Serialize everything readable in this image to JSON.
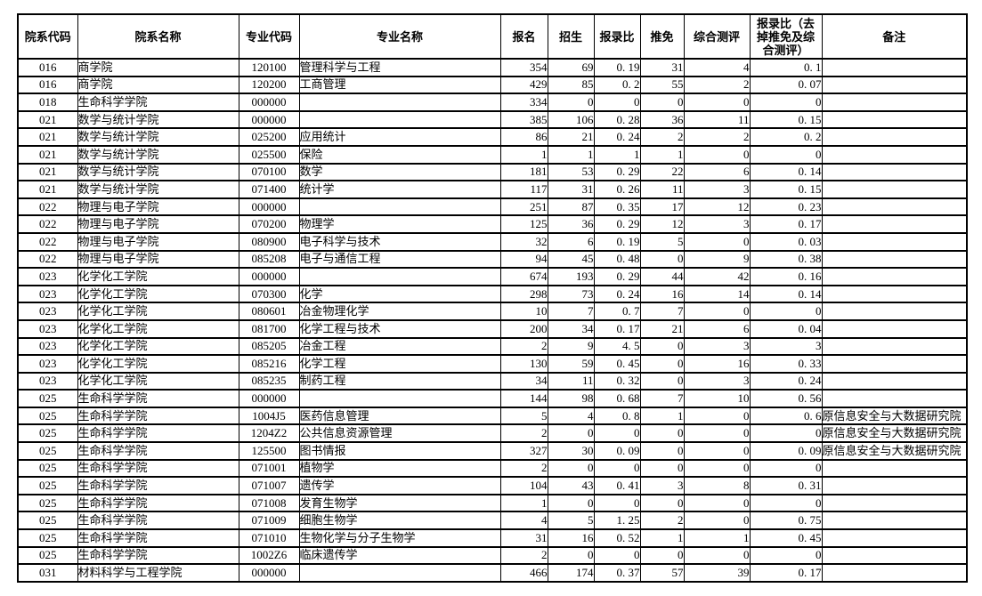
{
  "colors": {
    "background": "#ffffff",
    "border": "#000000",
    "text": "#000000"
  },
  "table": {
    "columns": [
      "院系代码",
      "院系名称",
      "专业代码",
      "专业名称",
      "报名",
      "招生",
      "报录比",
      "推免",
      "综合测评",
      "报录比（去掉推免及综合测评）",
      "备注"
    ],
    "rows": [
      [
        "016",
        "商学院",
        "120100",
        "管理科学与工程",
        "354",
        "69",
        "0. 19",
        "31",
        "4",
        "0. 1",
        ""
      ],
      [
        "016",
        "商学院",
        "120200",
        "工商管理",
        "429",
        "85",
        "0. 2",
        "55",
        "2",
        "0. 07",
        ""
      ],
      [
        "018",
        "生命科学学院",
        "000000",
        "",
        "334",
        "0",
        "0",
        "0",
        "0",
        "0",
        ""
      ],
      [
        "021",
        "数学与统计学院",
        "000000",
        "",
        "385",
        "106",
        "0. 28",
        "36",
        "11",
        "0. 15",
        ""
      ],
      [
        "021",
        "数学与统计学院",
        "025200",
        "应用统计",
        "86",
        "21",
        "0. 24",
        "2",
        "2",
        "0. 2",
        ""
      ],
      [
        "021",
        "数学与统计学院",
        "025500",
        "保险",
        "1",
        "1",
        "1",
        "1",
        "0",
        "0",
        ""
      ],
      [
        "021",
        "数学与统计学院",
        "070100",
        "数学",
        "181",
        "53",
        "0. 29",
        "22",
        "6",
        "0. 14",
        ""
      ],
      [
        "021",
        "数学与统计学院",
        "071400",
        "统计学",
        "117",
        "31",
        "0. 26",
        "11",
        "3",
        "0. 15",
        ""
      ],
      [
        "022",
        "物理与电子学院",
        "000000",
        "",
        "251",
        "87",
        "0. 35",
        "17",
        "12",
        "0. 23",
        ""
      ],
      [
        "022",
        "物理与电子学院",
        "070200",
        "物理学",
        "125",
        "36",
        "0. 29",
        "12",
        "3",
        "0. 17",
        ""
      ],
      [
        "022",
        "物理与电子学院",
        "080900",
        "电子科学与技术",
        "32",
        "6",
        "0. 19",
        "5",
        "0",
        "0. 03",
        ""
      ],
      [
        "022",
        "物理与电子学院",
        "085208",
        "电子与通信工程",
        "94",
        "45",
        "0. 48",
        "0",
        "9",
        "0. 38",
        ""
      ],
      [
        "023",
        "化学化工学院",
        "000000",
        "",
        "674",
        "193",
        "0. 29",
        "44",
        "42",
        "0. 16",
        ""
      ],
      [
        "023",
        "化学化工学院",
        "070300",
        "化学",
        "298",
        "73",
        "0. 24",
        "16",
        "14",
        "0. 14",
        ""
      ],
      [
        "023",
        "化学化工学院",
        "080601",
        "冶金物理化学",
        "10",
        "7",
        "0. 7",
        "7",
        "0",
        "0",
        ""
      ],
      [
        "023",
        "化学化工学院",
        "081700",
        "化学工程与技术",
        "200",
        "34",
        "0. 17",
        "21",
        "6",
        "0. 04",
        ""
      ],
      [
        "023",
        "化学化工学院",
        "085205",
        "冶金工程",
        "2",
        "9",
        "4. 5",
        "0",
        "3",
        "3",
        ""
      ],
      [
        "023",
        "化学化工学院",
        "085216",
        "化学工程",
        "130",
        "59",
        "0. 45",
        "0",
        "16",
        "0. 33",
        ""
      ],
      [
        "023",
        "化学化工学院",
        "085235",
        "制药工程",
        "34",
        "11",
        "0. 32",
        "0",
        "3",
        "0. 24",
        ""
      ],
      [
        "025",
        "生命科学学院",
        "000000",
        "",
        "144",
        "98",
        "0. 68",
        "7",
        "10",
        "0. 56",
        ""
      ],
      [
        "025",
        "生命科学学院",
        "1004J5",
        "医药信息管理",
        "5",
        "4",
        "0. 8",
        "1",
        "0",
        "0. 6",
        "原信息安全与大数据研究院"
      ],
      [
        "025",
        "生命科学学院",
        "1204Z2",
        "公共信息资源管理",
        "2",
        "0",
        "0",
        "0",
        "0",
        "0",
        "原信息安全与大数据研究院"
      ],
      [
        "025",
        "生命科学学院",
        "125500",
        "图书情报",
        "327",
        "30",
        "0. 09",
        "0",
        "0",
        "0. 09",
        "原信息安全与大数据研究院"
      ],
      [
        "025",
        "生命科学学院",
        "071001",
        "植物学",
        "2",
        "0",
        "0",
        "0",
        "0",
        "0",
        ""
      ],
      [
        "025",
        "生命科学学院",
        "071007",
        "遗传学",
        "104",
        "43",
        "0. 41",
        "3",
        "8",
        "0. 31",
        ""
      ],
      [
        "025",
        "生命科学学院",
        "071008",
        "发育生物学",
        "1",
        "0",
        "0",
        "0",
        "0",
        "0",
        ""
      ],
      [
        "025",
        "生命科学学院",
        "071009",
        "细胞生物学",
        "4",
        "5",
        "1. 25",
        "2",
        "0",
        "0. 75",
        ""
      ],
      [
        "025",
        "生命科学学院",
        "071010",
        "生物化学与分子生物学",
        "31",
        "16",
        "0. 52",
        "1",
        "1",
        "0. 45",
        ""
      ],
      [
        "025",
        "生命科学学院",
        "1002Z6",
        "临床遗传学",
        "2",
        "0",
        "0",
        "0",
        "0",
        "0",
        ""
      ],
      [
        "031",
        "材料科学与工程学院",
        "000000",
        "",
        "466",
        "174",
        "0. 37",
        "57",
        "39",
        "0. 17",
        ""
      ]
    ]
  }
}
